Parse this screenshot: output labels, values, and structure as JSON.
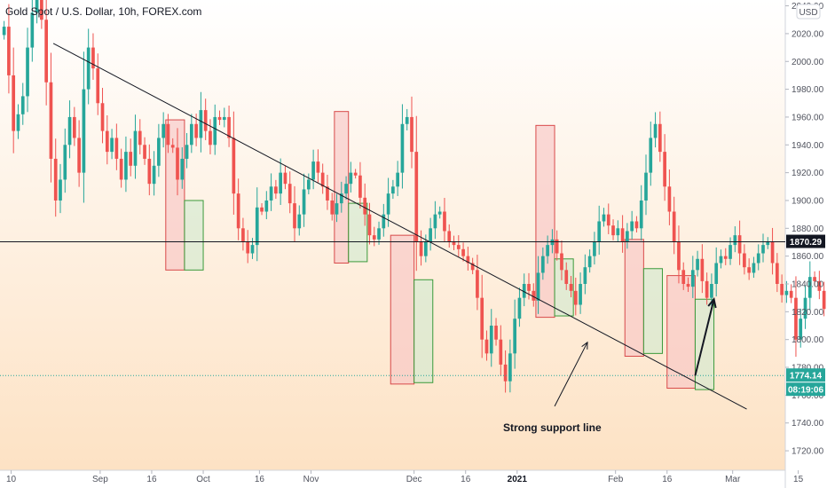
{
  "header": {
    "title": "Gold Spot / U.S. Dollar, 10h, FOREX.com",
    "currency": "USD"
  },
  "colors": {
    "up": "#26a69a",
    "down": "#ef5350",
    "box_red_fill": "#f7c3c3",
    "box_red_stroke": "#d84a4a",
    "box_green_fill": "#cfe9cf",
    "box_green_stroke": "#3b9a3b",
    "bg_top": "#ffffff",
    "bg_bottom": "#fde2c4",
    "current_price": "#26a69a",
    "level_line": "#131722",
    "trend_line": "#131722"
  },
  "chart_data": {
    "type": "candlestick",
    "title": "Gold Spot / U.S. Dollar, 10h, FOREX.com",
    "x_ticks": [
      {
        "label": "10",
        "bar": 2
      },
      {
        "label": "Sep",
        "bar": 21
      },
      {
        "label": "16",
        "bar": 32
      },
      {
        "label": "Oct",
        "bar": 43
      },
      {
        "label": "16",
        "bar": 55
      },
      {
        "label": "Nov",
        "bar": 66
      },
      {
        "label": "Dec",
        "bar": 88,
        "bold": false
      },
      {
        "label": "16",
        "bar": 99
      },
      {
        "label": "2021",
        "bar": 110,
        "bold": true
      },
      {
        "label": "Feb",
        "bar": 131
      },
      {
        "label": "16",
        "bar": 142
      },
      {
        "label": "Mar",
        "bar": 156
      },
      {
        "label": "15",
        "bar": 170
      }
    ],
    "y_ticks": [
      1720,
      1740,
      1760,
      1780,
      1800,
      1820,
      1840,
      1860,
      1880,
      1900,
      1920,
      1940,
      1960,
      1980,
      2000,
      2020,
      2040
    ],
    "ylim": [
      1706,
      2041
    ],
    "grid": false,
    "closes": [
      2025,
      1990,
      1950,
      1962,
      1975,
      2010,
      2035,
      2045,
      2030,
      1985,
      1930,
      1900,
      1915,
      1940,
      1960,
      1945,
      1920,
      1980,
      2010,
      1995,
      1970,
      1950,
      1935,
      1945,
      1930,
      1915,
      1935,
      1925,
      1950,
      1940,
      1930,
      1912,
      1925,
      1945,
      1955,
      1940,
      1938,
      1915,
      1930,
      1940,
      1955,
      1945,
      1965,
      1950,
      1940,
      1960,
      1958,
      1960,
      1945,
      1905,
      1880,
      1870,
      1862,
      1868,
      1895,
      1892,
      1900,
      1910,
      1905,
      1920,
      1912,
      1898,
      1880,
      1890,
      1908,
      1915,
      1928,
      1920,
      1910,
      1900,
      1890,
      1898,
      1905,
      1912,
      1920,
      1918,
      1902,
      1890,
      1875,
      1872,
      1880,
      1890,
      1905,
      1910,
      1920,
      1955,
      1960,
      1935,
      1870,
      1860,
      1870,
      1880,
      1890,
      1892,
      1878,
      1870,
      1868,
      1865,
      1860,
      1855,
      1850,
      1830,
      1800,
      1790,
      1810,
      1800,
      1782,
      1770,
      1790,
      1815,
      1830,
      1840,
      1835,
      1828,
      1848,
      1860,
      1868,
      1872,
      1862,
      1850,
      1840,
      1835,
      1825,
      1840,
      1852,
      1860,
      1870,
      1885,
      1890,
      1882,
      1875,
      1880,
      1870,
      1878,
      1885,
      1880,
      1900,
      1920,
      1945,
      1955,
      1935,
      1910,
      1892,
      1870,
      1850,
      1840,
      1838,
      1850,
      1858,
      1842,
      1830,
      1840,
      1855,
      1860,
      1858,
      1868,
      1875,
      1862,
      1852,
      1848,
      1855,
      1862,
      1868,
      1870,
      1855,
      1840,
      1832,
      1835,
      1830,
      1800,
      1815,
      1830,
      1845,
      1842,
      1835,
      1822,
      1825,
      1820,
      1805,
      1790,
      1785,
      1778,
      1772,
      1774.14
    ],
    "current_price": 1774.14,
    "level_price": 1870.29,
    "countdown": "08:19:06",
    "trend_line": {
      "from": {
        "bar": 11,
        "price": 2013
      },
      "to": {
        "bar": 159,
        "price": 1750
      }
    },
    "boxes": [
      {
        "color": "red",
        "bar_from": 35,
        "bar_to": 39,
        "price_top": 1958,
        "price_bottom": 1850
      },
      {
        "color": "green",
        "bar_from": 39,
        "bar_to": 43,
        "price_top": 1900,
        "price_bottom": 1850
      },
      {
        "color": "red",
        "bar_from": 71,
        "bar_to": 74,
        "price_top": 1964,
        "price_bottom": 1855
      },
      {
        "color": "green",
        "bar_from": 74,
        "bar_to": 78,
        "price_top": 1898,
        "price_bottom": 1856
      },
      {
        "color": "red",
        "bar_from": 83,
        "bar_to": 88,
        "price_top": 1875,
        "price_bottom": 1768
      },
      {
        "color": "green",
        "bar_from": 88,
        "bar_to": 92,
        "price_top": 1843,
        "price_bottom": 1769
      },
      {
        "color": "red",
        "bar_from": 114,
        "bar_to": 118,
        "price_top": 1954,
        "price_bottom": 1816
      },
      {
        "color": "green",
        "bar_from": 118,
        "bar_to": 122,
        "price_top": 1858,
        "price_bottom": 1817
      },
      {
        "color": "red",
        "bar_from": 133,
        "bar_to": 137,
        "price_top": 1872,
        "price_bottom": 1788
      },
      {
        "color": "green",
        "bar_from": 137,
        "bar_to": 141,
        "price_top": 1851,
        "price_bottom": 1790
      },
      {
        "color": "red",
        "bar_from": 142,
        "bar_to": 148,
        "price_top": 1846,
        "price_bottom": 1765
      },
      {
        "color": "green",
        "bar_from": 148,
        "bar_to": 152,
        "price_top": 1829,
        "price_bottom": 1764
      }
    ],
    "projection_arrow": {
      "from": {
        "bar": 148,
        "price": 1774
      },
      "to": {
        "bar": 152,
        "price": 1829
      }
    },
    "annotation": {
      "text": "Strong support line",
      "arrow_from": {
        "bar": 118,
        "price": 1752
      },
      "arrow_to": {
        "bar": 125,
        "price": 1798
      },
      "text_bar": 107,
      "text_price": 1734
    }
  }
}
